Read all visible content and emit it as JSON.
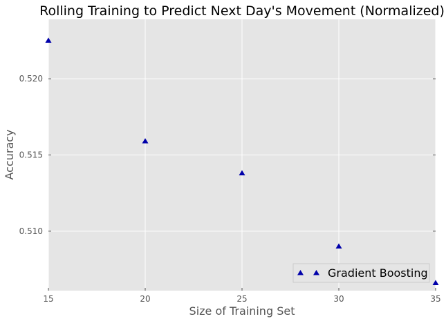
{
  "chart_data": {
    "type": "scatter",
    "title": "Rolling Training to Predict Next Day's Movement (Normalized)",
    "xlabel": "Size of Training Set",
    "ylabel": "Accuracy",
    "xlim": [
      15,
      35
    ],
    "ylim": [
      0.5061,
      0.5239
    ],
    "xticks": [
      15,
      20,
      25,
      30,
      35
    ],
    "xtick_labels": [
      "15",
      "20",
      "25",
      "30",
      "35"
    ],
    "yticks": [
      0.51,
      0.515,
      0.52
    ],
    "ytick_labels": [
      "0.510",
      "0.515",
      "0.520"
    ],
    "grid": true,
    "legend_position": "lower-right",
    "series": [
      {
        "name": "Gradient Boosting",
        "marker": "triangle-up",
        "color": "#0000aa",
        "x": [
          15,
          20,
          25,
          30,
          35
        ],
        "y": [
          0.5225,
          0.5159,
          0.5138,
          0.509,
          0.5066
        ]
      }
    ],
    "colors": {
      "plot_background": "#e5e5e5",
      "grid": "#ffffff",
      "axis_text": "#555555"
    }
  }
}
